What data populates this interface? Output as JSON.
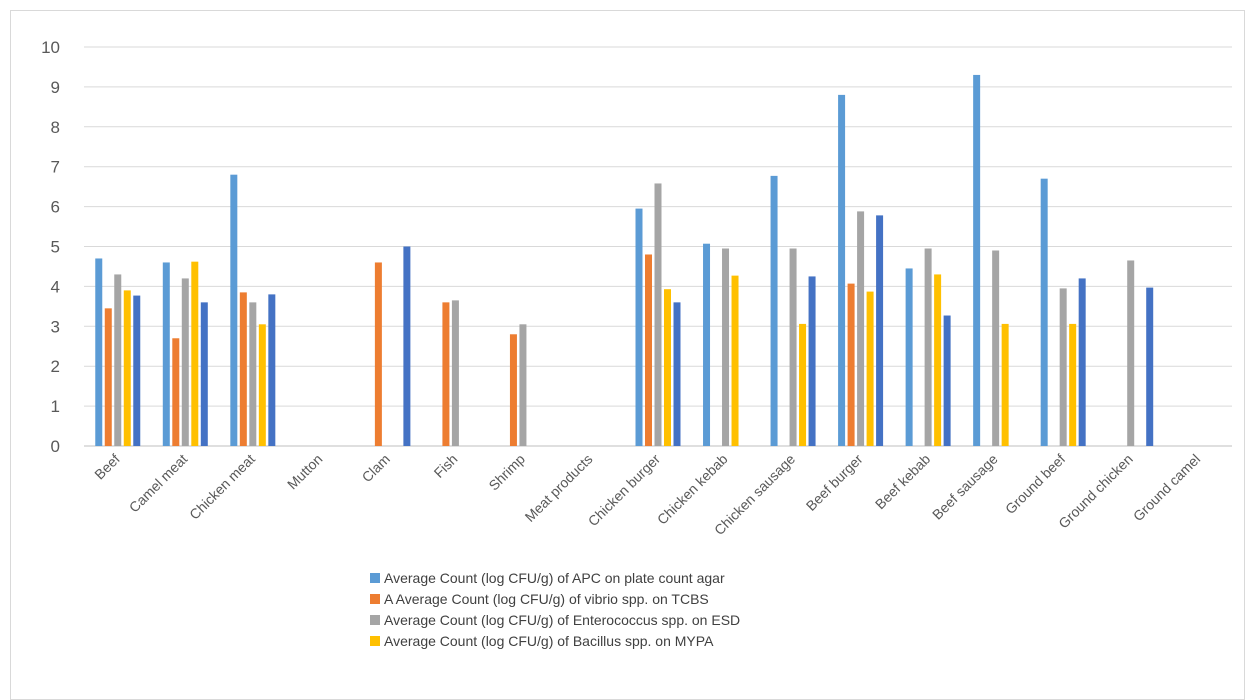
{
  "chart_data": {
    "type": "bar",
    "title": "",
    "xlabel": "",
    "ylabel": "",
    "ylim": [
      0,
      10
    ],
    "y_ticks": [
      0,
      1,
      2,
      3,
      4,
      5,
      6,
      7,
      8,
      9,
      10
    ],
    "grid": true,
    "legend_position": "bottom",
    "categories": [
      "Beef",
      "Camel meat",
      "Chicken meat",
      "Mutton",
      "Clam",
      "Fish",
      "Shrimp",
      "Meat products",
      "Chicken burger",
      "Chicken kebab",
      "Chicken sausage",
      "Beef burger",
      "Beef kebab",
      "Beef sausage",
      "Ground beef",
      "Ground chicken",
      "Ground camel"
    ],
    "series": [
      {
        "name": "Average Count (log CFU/g) of APC on plate count agar",
        "color": "#5b9bd5",
        "values": [
          4.7,
          4.6,
          6.8,
          null,
          null,
          null,
          null,
          null,
          5.95,
          5.07,
          6.77,
          8.8,
          4.45,
          9.3,
          6.7,
          null,
          null
        ]
      },
      {
        "name": "A Average Count (log CFU/g) of vibrio spp. on TCBS",
        "color": "#ed7d31",
        "values": [
          3.45,
          2.7,
          3.85,
          null,
          4.6,
          3.6,
          2.8,
          null,
          4.8,
          null,
          null,
          4.07,
          null,
          null,
          null,
          null,
          null
        ]
      },
      {
        "name": "Average Count (log CFU/g) of Enterococcus spp. on ESD",
        "color": "#a5a5a5",
        "values": [
          4.3,
          4.2,
          3.6,
          null,
          null,
          3.65,
          3.05,
          null,
          6.58,
          4.95,
          4.95,
          5.88,
          4.95,
          4.9,
          3.95,
          4.65,
          null
        ]
      },
      {
        "name": "Average Count (log CFU/g) of Bacillus spp. on MYPA",
        "color": "#ffc000",
        "values": [
          3.9,
          4.62,
          3.05,
          null,
          null,
          null,
          null,
          null,
          3.93,
          4.27,
          3.06,
          3.87,
          4.3,
          3.06,
          3.06,
          null,
          null
        ]
      },
      {
        "name": "",
        "color": "#4472c4",
        "values": [
          3.77,
          3.6,
          3.8,
          null,
          5.0,
          null,
          null,
          null,
          3.6,
          null,
          4.25,
          5.78,
          3.27,
          null,
          4.2,
          3.97,
          null
        ]
      }
    ]
  }
}
